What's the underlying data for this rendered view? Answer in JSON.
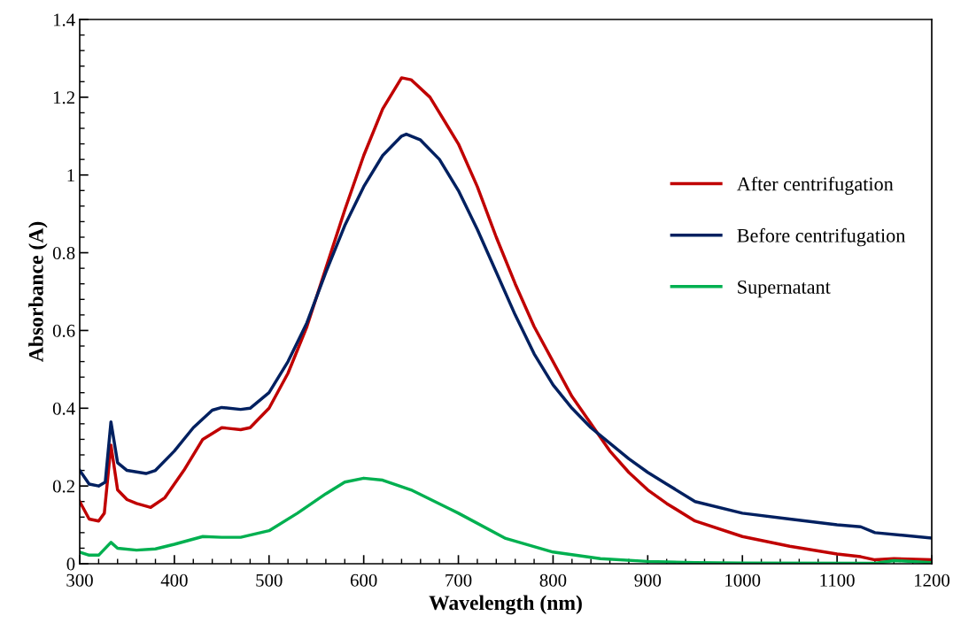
{
  "chart_data": {
    "type": "line",
    "xlabel": "Wavelength (nm)",
    "ylabel": "Absorbance (A)",
    "xlim": [
      300,
      1200
    ],
    "ylim": [
      0,
      1.4
    ],
    "xticks": [
      300,
      {
        "value": 320,
        "label": null
      },
      {
        "value": 340,
        "label": null
      },
      {
        "value": 360,
        "label": null
      },
      {
        "value": 380,
        "label": null
      },
      400,
      {
        "value": 420,
        "label": null
      },
      {
        "value": 440,
        "label": null
      },
      {
        "value": 460,
        "label": null
      },
      {
        "value": 480,
        "label": null
      },
      500,
      {
        "value": 520,
        "label": null
      },
      {
        "value": 540,
        "label": null
      },
      {
        "value": 560,
        "label": null
      },
      {
        "value": 580,
        "label": null
      },
      600,
      {
        "value": 620,
        "label": null
      },
      {
        "value": 640,
        "label": null
      },
      {
        "value": 660,
        "label": null
      },
      {
        "value": 680,
        "label": null
      },
      700,
      {
        "value": 720,
        "label": null
      },
      {
        "value": 740,
        "label": null
      },
      {
        "value": 760,
        "label": null
      },
      {
        "value": 780,
        "label": null
      },
      800,
      {
        "value": 820,
        "label": null
      },
      {
        "value": 840,
        "label": null
      },
      {
        "value": 860,
        "label": null
      },
      {
        "value": 880,
        "label": null
      },
      900,
      {
        "value": 920,
        "label": null
      },
      {
        "value": 940,
        "label": null
      },
      {
        "value": 960,
        "label": null
      },
      {
        "value": 980,
        "label": null
      },
      1000,
      {
        "value": 1020,
        "label": null
      },
      {
        "value": 1040,
        "label": null
      },
      {
        "value": 1060,
        "label": null
      },
      {
        "value": 1080,
        "label": null
      },
      1100,
      {
        "value": 1120,
        "label": null
      },
      {
        "value": 1140,
        "label": null
      },
      {
        "value": 1160,
        "label": null
      },
      {
        "value": 1180,
        "label": null
      },
      1200
    ],
    "yticks": [
      0,
      {
        "value": 0.04,
        "label": null
      },
      {
        "value": 0.08,
        "label": null
      },
      {
        "value": 0.12,
        "label": null
      },
      {
        "value": 0.16,
        "label": null
      },
      0.2,
      {
        "value": 0.24,
        "label": null
      },
      {
        "value": 0.28,
        "label": null
      },
      {
        "value": 0.32,
        "label": null
      },
      {
        "value": 0.36,
        "label": null
      },
      0.4,
      {
        "value": 0.44,
        "label": null
      },
      {
        "value": 0.48,
        "label": null
      },
      {
        "value": 0.52,
        "label": null
      },
      {
        "value": 0.56,
        "label": null
      },
      0.6,
      {
        "value": 0.64,
        "label": null
      },
      {
        "value": 0.68,
        "label": null
      },
      {
        "value": 0.72,
        "label": null
      },
      {
        "value": 0.76,
        "label": null
      },
      0.8,
      {
        "value": 0.84,
        "label": null
      },
      {
        "value": 0.88,
        "label": null
      },
      {
        "value": 0.92,
        "label": null
      },
      {
        "value": 0.96,
        "label": null
      },
      1,
      {
        "value": 1.04,
        "label": null
      },
      {
        "value": 1.08,
        "label": null
      },
      {
        "value": 1.12,
        "label": null
      },
      {
        "value": 1.16,
        "label": null
      },
      1.2,
      {
        "value": 1.24,
        "label": null
      },
      {
        "value": 1.28,
        "label": null
      },
      {
        "value": 1.32,
        "label": null
      },
      {
        "value": 1.36,
        "label": null
      },
      1.4
    ],
    "grid": false,
    "legend": "right",
    "marker": "none",
    "line_style": "solid",
    "series": [
      {
        "name": "After centrifugation",
        "color": "#c00000",
        "x": [
          300,
          310,
          320,
          326,
          333,
          340,
          350,
          360,
          375,
          390,
          410,
          430,
          450,
          470,
          480,
          500,
          520,
          540,
          560,
          580,
          600,
          620,
          640,
          650,
          670,
          700,
          720,
          740,
          760,
          780,
          800,
          820,
          840,
          860,
          880,
          900,
          920,
          950,
          1000,
          1050,
          1100,
          1125,
          1140,
          1160,
          1200
        ],
        "values": [
          0.16,
          0.115,
          0.11,
          0.13,
          0.305,
          0.19,
          0.165,
          0.155,
          0.145,
          0.17,
          0.24,
          0.32,
          0.35,
          0.345,
          0.35,
          0.4,
          0.49,
          0.61,
          0.76,
          0.91,
          1.05,
          1.17,
          1.25,
          1.245,
          1.2,
          1.08,
          0.97,
          0.84,
          0.72,
          0.61,
          0.52,
          0.43,
          0.36,
          0.29,
          0.235,
          0.19,
          0.155,
          0.11,
          0.07,
          0.045,
          0.025,
          0.018,
          0.01,
          0.013,
          0.01
        ]
      },
      {
        "name": "Before centrifugation",
        "color": "#002060",
        "x": [
          300,
          310,
          320,
          327,
          333,
          340,
          350,
          370,
          380,
          400,
          420,
          440,
          450,
          470,
          480,
          500,
          520,
          540,
          560,
          580,
          600,
          620,
          640,
          645,
          660,
          680,
          700,
          720,
          740,
          760,
          780,
          800,
          820,
          840,
          860,
          880,
          900,
          920,
          950,
          1000,
          1050,
          1100,
          1125,
          1140,
          1200
        ],
        "values": [
          0.24,
          0.205,
          0.2,
          0.21,
          0.365,
          0.26,
          0.24,
          0.232,
          0.24,
          0.29,
          0.35,
          0.395,
          0.402,
          0.397,
          0.4,
          0.44,
          0.52,
          0.62,
          0.75,
          0.87,
          0.97,
          1.05,
          1.1,
          1.105,
          1.09,
          1.04,
          0.96,
          0.86,
          0.75,
          0.64,
          0.54,
          0.46,
          0.4,
          0.35,
          0.31,
          0.27,
          0.235,
          0.205,
          0.16,
          0.13,
          0.115,
          0.1,
          0.095,
          0.08,
          0.066
        ]
      },
      {
        "name": "Supernatant",
        "color": "#00b050",
        "x": [
          300,
          310,
          320,
          333,
          340,
          360,
          380,
          400,
          430,
          450,
          470,
          500,
          530,
          560,
          580,
          600,
          620,
          650,
          700,
          750,
          800,
          850,
          900,
          950,
          1000,
          1140,
          1160,
          1200
        ],
        "values": [
          0.03,
          0.022,
          0.022,
          0.055,
          0.04,
          0.035,
          0.038,
          0.05,
          0.07,
          0.068,
          0.068,
          0.085,
          0.13,
          0.18,
          0.21,
          0.22,
          0.215,
          0.19,
          0.13,
          0.065,
          0.03,
          0.013,
          0.006,
          0.003,
          0.002,
          0.001,
          0.008,
          0.003
        ]
      }
    ]
  }
}
